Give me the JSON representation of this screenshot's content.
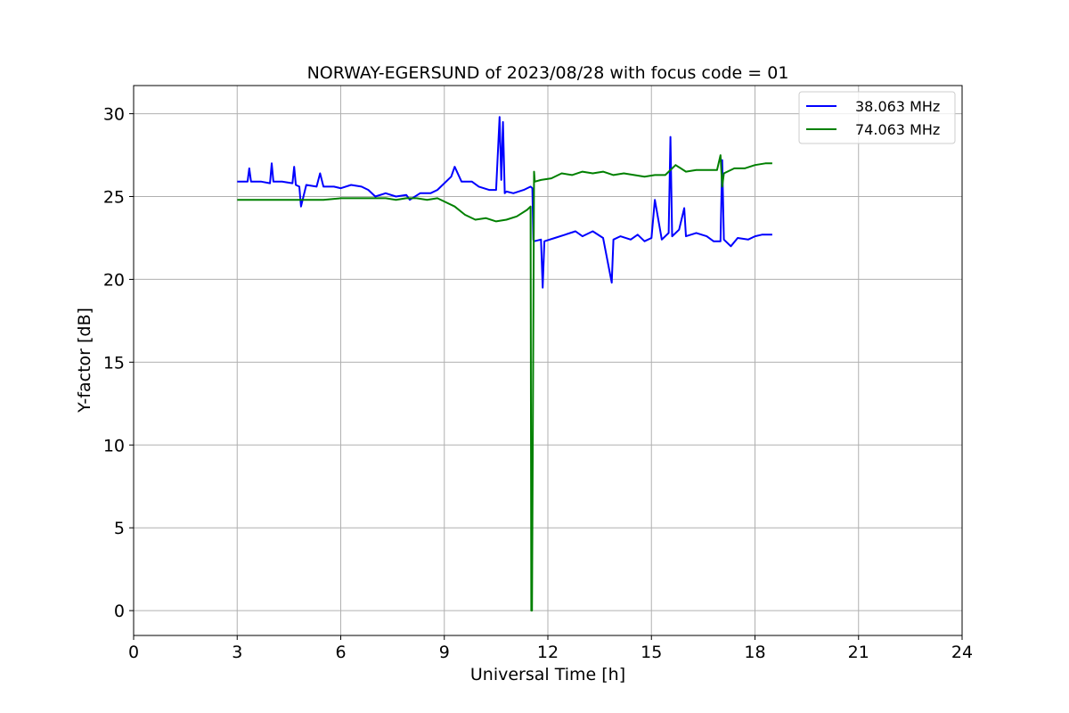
{
  "chart_data": {
    "type": "line",
    "title": "NORWAY-EGERSUND of 2023/08/28 with focus code = 01",
    "xlabel": "Universal Time [h]",
    "ylabel": "Y-factor [dB]",
    "xlim": [
      0,
      24
    ],
    "ylim": [
      -1.5,
      31.7
    ],
    "xticks": [
      0,
      3,
      6,
      9,
      12,
      15,
      18,
      21,
      24
    ],
    "xtick_labels": [
      "0",
      "3",
      "6",
      "9",
      "12",
      "15",
      "18",
      "21",
      "24"
    ],
    "yticks": [
      0,
      5,
      10,
      15,
      20,
      25,
      30
    ],
    "ytick_labels": [
      "0",
      "5",
      "10",
      "15",
      "20",
      "25",
      "30"
    ],
    "grid": true,
    "legend_position": "top-right",
    "series": [
      {
        "name": "38.063 MHz",
        "color": "#0000ff",
        "x": [
          3.0,
          3.3,
          3.35,
          3.4,
          3.7,
          3.95,
          4.0,
          4.05,
          4.3,
          4.6,
          4.65,
          4.7,
          4.8,
          4.85,
          5.0,
          5.3,
          5.4,
          5.5,
          5.8,
          6.0,
          6.3,
          6.6,
          6.8,
          7.0,
          7.3,
          7.6,
          7.9,
          8.0,
          8.3,
          8.6,
          8.8,
          9.0,
          9.2,
          9.3,
          9.5,
          9.8,
          10.0,
          10.3,
          10.5,
          10.6,
          10.65,
          10.7,
          10.75,
          10.8,
          11.0,
          11.3,
          11.5,
          11.55,
          11.58,
          11.6,
          11.8,
          11.85,
          11.9,
          12.2,
          12.5,
          12.8,
          13.0,
          13.3,
          13.6,
          13.85,
          13.9,
          14.1,
          14.4,
          14.6,
          14.8,
          15.0,
          15.1,
          15.3,
          15.5,
          15.55,
          15.6,
          15.8,
          15.95,
          16.0,
          16.3,
          16.6,
          16.8,
          17.0,
          17.05,
          17.1,
          17.3,
          17.5,
          17.8,
          18.0,
          18.2,
          18.5
        ],
        "y": [
          25.9,
          25.9,
          26.7,
          25.9,
          25.9,
          25.8,
          27.0,
          25.9,
          25.9,
          25.8,
          26.8,
          25.7,
          25.6,
          24.4,
          25.7,
          25.6,
          26.4,
          25.6,
          25.6,
          25.5,
          25.7,
          25.6,
          25.4,
          25.0,
          25.2,
          25.0,
          25.1,
          24.8,
          25.2,
          25.2,
          25.4,
          25.8,
          26.2,
          26.8,
          25.9,
          25.9,
          25.6,
          25.4,
          25.4,
          29.8,
          26.0,
          29.5,
          25.2,
          25.3,
          25.2,
          25.4,
          25.6,
          25.5,
          22.4,
          22.3,
          22.4,
          19.5,
          22.3,
          22.5,
          22.7,
          22.9,
          22.6,
          22.9,
          22.5,
          19.8,
          22.4,
          22.6,
          22.4,
          22.7,
          22.3,
          22.5,
          24.8,
          22.4,
          22.8,
          28.6,
          22.6,
          23.0,
          24.3,
          22.6,
          22.8,
          22.6,
          22.3,
          22.3,
          27.2,
          22.4,
          22.0,
          22.5,
          22.4,
          22.6,
          22.7,
          22.7
        ]
      },
      {
        "name": "74.063 MHz",
        "color": "#008000",
        "x": [
          3.0,
          3.5,
          4.0,
          4.5,
          5.0,
          5.5,
          6.0,
          6.5,
          7.0,
          7.3,
          7.6,
          7.9,
          8.2,
          8.5,
          8.8,
          9.0,
          9.3,
          9.6,
          9.9,
          10.2,
          10.5,
          10.8,
          11.1,
          11.4,
          11.5,
          11.52,
          11.54,
          11.6,
          11.62,
          11.8,
          12.1,
          12.4,
          12.7,
          13.0,
          13.3,
          13.6,
          13.9,
          14.2,
          14.5,
          14.8,
          15.1,
          15.4,
          15.7,
          16.0,
          16.3,
          16.6,
          16.9,
          17.0,
          17.05,
          17.1,
          17.4,
          17.7,
          18.0,
          18.3,
          18.5
        ],
        "y": [
          24.8,
          24.8,
          24.8,
          24.8,
          24.8,
          24.8,
          24.9,
          24.9,
          24.9,
          24.9,
          24.8,
          24.9,
          24.9,
          24.8,
          24.9,
          24.7,
          24.4,
          23.9,
          23.6,
          23.7,
          23.5,
          23.6,
          23.8,
          24.2,
          24.4,
          0.0,
          0.0,
          26.5,
          25.9,
          26.0,
          26.1,
          26.4,
          26.3,
          26.5,
          26.4,
          26.5,
          26.3,
          26.4,
          26.3,
          26.2,
          26.3,
          26.3,
          26.9,
          26.5,
          26.6,
          26.6,
          26.6,
          27.5,
          25.6,
          26.4,
          26.7,
          26.7,
          26.9,
          27.0,
          27.0
        ]
      }
    ]
  }
}
